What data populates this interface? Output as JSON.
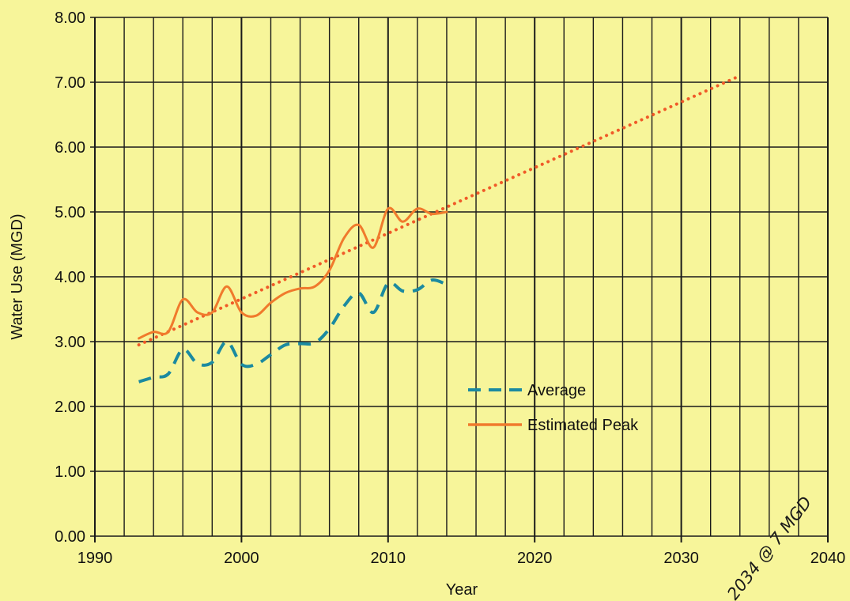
{
  "chart_data": {
    "type": "line",
    "title": "",
    "xlabel": "Year",
    "ylabel": "Water Use (MGD)",
    "xlim": [
      1990,
      2040
    ],
    "ylim": [
      0,
      8
    ],
    "x_ticks": [
      "1990",
      "2000",
      "2010",
      "2020",
      "2030",
      "2040"
    ],
    "y_ticks": [
      "0.00",
      "1.00",
      "2.00",
      "3.00",
      "4.00",
      "5.00",
      "6.00",
      "7.00",
      "8.00"
    ],
    "grid": true,
    "legend_position": "lower-center-right",
    "series": [
      {
        "name": "Average",
        "style": "dashed",
        "color": "#1b8aa0",
        "x": [
          1993,
          1994,
          1995,
          1996,
          1997,
          1998,
          1999,
          2000,
          2001,
          2002,
          2003,
          2004,
          2005,
          2006,
          2007,
          2008,
          2009,
          2010,
          2011,
          2012,
          2013,
          2014
        ],
        "y": [
          2.38,
          2.45,
          2.5,
          2.88,
          2.66,
          2.68,
          3.0,
          2.65,
          2.65,
          2.8,
          2.95,
          2.97,
          2.98,
          3.2,
          3.55,
          3.75,
          3.45,
          3.9,
          3.78,
          3.8,
          3.95,
          3.88
        ]
      },
      {
        "name": "Estimated Peak",
        "style": "solid",
        "color": "#f07a2c",
        "x": [
          1993,
          1994,
          1995,
          1996,
          1997,
          1998,
          1999,
          2000,
          2001,
          2002,
          2003,
          2004,
          2005,
          2006,
          2007,
          2008,
          2009,
          2010,
          2011,
          2012,
          2013,
          2014
        ],
        "y": [
          3.05,
          3.15,
          3.15,
          3.65,
          3.45,
          3.45,
          3.85,
          3.45,
          3.4,
          3.6,
          3.75,
          3.82,
          3.85,
          4.1,
          4.6,
          4.8,
          4.45,
          5.05,
          4.85,
          5.05,
          4.97,
          5.0
        ]
      },
      {
        "name": "",
        "style": "dotted",
        "color": "#f05a28",
        "x": [
          1993,
          2034
        ],
        "y": [
          2.95,
          7.1
        ]
      }
    ],
    "annotations": [
      {
        "text": "2034 @ 7 MGD",
        "x": 2037,
        "y": 0.75
      }
    ]
  },
  "colors": {
    "background": "#f7f59a",
    "grid": "#1a1a1a"
  }
}
